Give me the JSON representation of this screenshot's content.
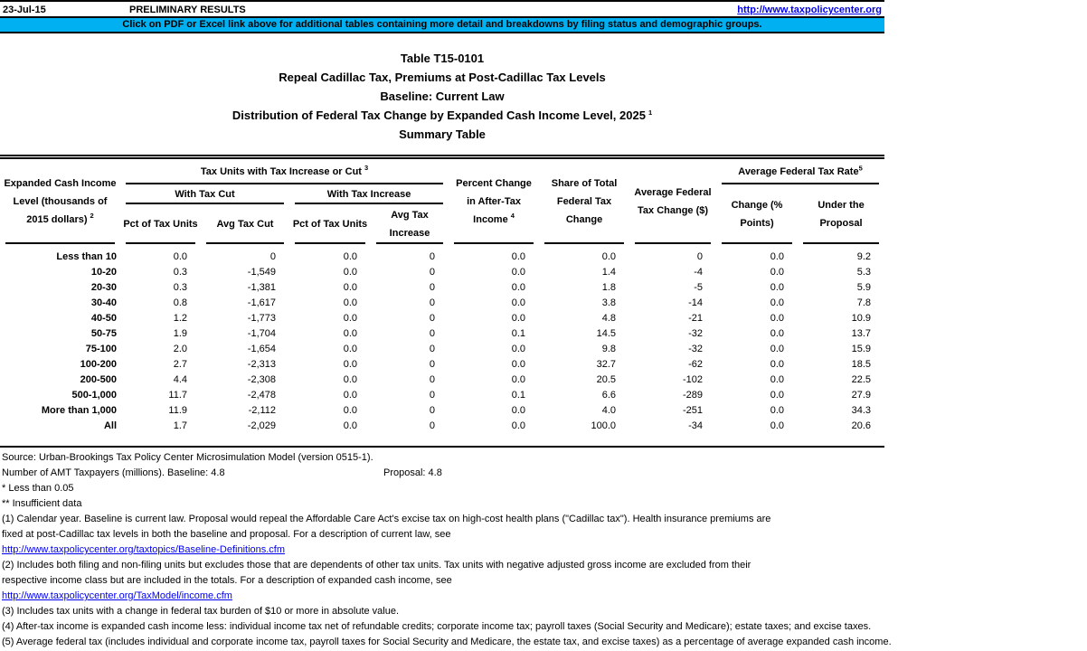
{
  "link_color": "#0000EE",
  "header_bar": {
    "date": "23-Jul-15",
    "status": "PRELIMINARY RESULTS",
    "link": "http://www.taxpolicycenter.org"
  },
  "banner": {
    "bg_color": "#00B0F0",
    "text": "Click on PDF or Excel link above for additional tables containing more detail and breakdowns by filing status and demographic groups."
  },
  "title": {
    "line1": "Table T15-0101",
    "line2": "Repeal Cadillac Tax, Premiums at Post-Cadillac Tax Levels",
    "line3": "Baseline: Current Law",
    "line4": "Distribution of Federal Tax Change by Expanded Cash Income Level, 2025",
    "line4_sup": "1",
    "line5": "Summary Table"
  },
  "table": {
    "headers": {
      "income_level": "Expanded Cash Income Level (thousands of 2015 dollars)",
      "income_level_sup": "2",
      "group_tax_units": "Tax Units with Tax Increase or Cut",
      "group_tax_units_sup": "3",
      "with_tax_cut": "With Tax Cut",
      "with_tax_increase": "With Tax Increase",
      "pct_of_tax_units_cut": "Pct of Tax Units",
      "avg_tax_cut": "Avg Tax Cut",
      "pct_of_tax_units_increase": "Pct of Tax Units",
      "avg_tax_increase": "Avg Tax Increase",
      "pct_change_after_tax_income": "Percent Change in After-Tax Income",
      "pct_change_after_tax_income_sup": "4",
      "share_of_total": "Share of Total Federal Tax Change",
      "avg_federal_tax_change": "Average Federal Tax Change ($)",
      "group_avg_federal_tax_rate": "Average Federal Tax Rate",
      "group_avg_federal_tax_rate_sup": "5",
      "rate_change_points": "Change (% Points)",
      "rate_under_proposal": "Under the Proposal"
    },
    "rows": [
      [
        "Less than 10",
        "0.0",
        "0",
        "0.0",
        "0",
        "0.0",
        "0.0",
        "0",
        "0.0",
        "9.2"
      ],
      [
        "10-20",
        "0.3",
        "-1,549",
        "0.0",
        "0",
        "0.0",
        "1.4",
        "-4",
        "0.0",
        "5.3"
      ],
      [
        "20-30",
        "0.3",
        "-1,381",
        "0.0",
        "0",
        "0.0",
        "1.8",
        "-5",
        "0.0",
        "5.9"
      ],
      [
        "30-40",
        "0.8",
        "-1,617",
        "0.0",
        "0",
        "0.0",
        "3.8",
        "-14",
        "0.0",
        "7.8"
      ],
      [
        "40-50",
        "1.2",
        "-1,773",
        "0.0",
        "0",
        "0.0",
        "4.8",
        "-21",
        "0.0",
        "10.9"
      ],
      [
        "50-75",
        "1.9",
        "-1,704",
        "0.0",
        "0",
        "0.1",
        "14.5",
        "-32",
        "0.0",
        "13.7"
      ],
      [
        "75-100",
        "2.0",
        "-1,654",
        "0.0",
        "0",
        "0.0",
        "9.8",
        "-32",
        "0.0",
        "15.9"
      ],
      [
        "100-200",
        "2.7",
        "-2,313",
        "0.0",
        "0",
        "0.0",
        "32.7",
        "-62",
        "0.0",
        "18.5"
      ],
      [
        "200-500",
        "4.4",
        "-2,308",
        "0.0",
        "0",
        "0.0",
        "20.5",
        "-102",
        "0.0",
        "22.5"
      ],
      [
        "500-1,000",
        "11.7",
        "-2,478",
        "0.0",
        "0",
        "0.1",
        "6.6",
        "-289",
        "0.0",
        "27.9"
      ],
      [
        "More than 1,000",
        "11.9",
        "-2,112",
        "0.0",
        "0",
        "0.0",
        "4.0",
        "-251",
        "0.0",
        "34.3"
      ],
      [
        "All",
        "1.7",
        "-2,029",
        "0.0",
        "0",
        "0.0",
        "100.0",
        "-34",
        "0.0",
        "20.6"
      ]
    ]
  },
  "notes": {
    "source": "Source: Urban-Brookings Tax Policy Center Microsimulation Model (version 0515-1).",
    "amt_label": "Number of AMT Taxpayers (millions).  Baseline: 4.8",
    "amt_proposal": "Proposal: 4.8",
    "star1": "* Less than 0.05",
    "star2": "** Insufficient data"
  },
  "footnotes": {
    "fn1_line1": "(1) Calendar year. Baseline is current law. Proposal would repeal the Affordable Care Act's excise tax on high-cost health plans (\"Cadillac tax\").  Health insurance premiums are",
    "fn1_line2": "fixed at post-Cadillac tax levels in both the baseline and proposal. For a description of current law, see",
    "fn1_link": "http://www.taxpolicycenter.org/taxtopics/Baseline-Definitions.cfm",
    "fn2_line1": "(2) Includes both filing and non-filing units but excludes those that are dependents of other tax units. Tax units with negative adjusted gross income are excluded from their",
    "fn2_line2": "respective income class but are included in the totals. For a description of expanded cash income, see",
    "fn2_link": "http://www.taxpolicycenter.org/TaxModel/income.cfm",
    "fn3": "(3) Includes tax units with a change in federal tax burden of $10 or more in absolute value.",
    "fn4": "(4) After-tax income is expanded cash income less: individual income tax net of refundable credits; corporate income tax; payroll taxes (Social Security and Medicare); estate taxes; and excise taxes.",
    "fn5": "(5) Average federal tax (includes individual and corporate income tax, payroll taxes for Social Security and Medicare, the estate tax, and excise taxes) as a percentage of average expanded cash income."
  }
}
